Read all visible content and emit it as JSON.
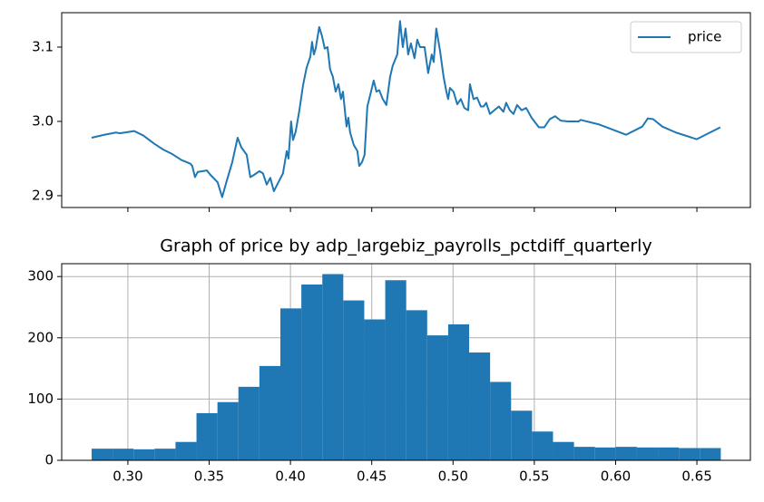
{
  "chart_data": [
    {
      "type": "line",
      "x": [
        0.2777,
        0.2855,
        0.2927,
        0.295,
        0.3039,
        0.3095,
        0.3162,
        0.3218,
        0.3273,
        0.3329,
        0.3385,
        0.3396,
        0.3413,
        0.343,
        0.3486,
        0.3508,
        0.3552,
        0.358,
        0.3608,
        0.3642,
        0.3675,
        0.3698,
        0.3731,
        0.3753,
        0.3776,
        0.3809,
        0.3831,
        0.3854,
        0.3876,
        0.3898,
        0.3921,
        0.3954,
        0.3977,
        0.3988,
        0.4004,
        0.4016,
        0.4032,
        0.4055,
        0.4077,
        0.4099,
        0.4122,
        0.4133,
        0.4144,
        0.4155,
        0.4177,
        0.4194,
        0.4211,
        0.4228,
        0.4244,
        0.4261,
        0.4278,
        0.4295,
        0.4311,
        0.4323,
        0.4345,
        0.4356,
        0.4367,
        0.439,
        0.4412,
        0.4423,
        0.444,
        0.4456,
        0.4473,
        0.449,
        0.4501,
        0.4512,
        0.4529,
        0.4546,
        0.4568,
        0.459,
        0.4613,
        0.4629,
        0.4657,
        0.4674,
        0.4691,
        0.4708,
        0.4724,
        0.4741,
        0.4763,
        0.478,
        0.4797,
        0.4825,
        0.4847,
        0.4869,
        0.4881,
        0.4897,
        0.492,
        0.4942,
        0.4959,
        0.497,
        0.4981,
        0.5003,
        0.5026,
        0.5048,
        0.507,
        0.5093,
        0.5104,
        0.5126,
        0.5148,
        0.5171,
        0.5188,
        0.5204,
        0.5227,
        0.5254,
        0.5282,
        0.531,
        0.5327,
        0.5349,
        0.5372,
        0.5394,
        0.5422,
        0.545,
        0.5483,
        0.5528,
        0.5561,
        0.5595,
        0.5628,
        0.5662,
        0.5707,
        0.5773,
        0.5785,
        0.5896,
        0.6064,
        0.6164,
        0.6198,
        0.6231,
        0.6287,
        0.6371,
        0.6499,
        0.6644
      ],
      "series": [
        {
          "name": "price",
          "color": "#1f77b4",
          "values": [
            2.978,
            2.982,
            2.985,
            2.984,
            2.987,
            2.981,
            2.97,
            2.962,
            2.956,
            2.948,
            2.943,
            2.94,
            2.925,
            2.932,
            2.934,
            2.928,
            2.918,
            2.898,
            2.92,
            2.945,
            2.978,
            2.965,
            2.955,
            2.925,
            2.928,
            2.933,
            2.93,
            2.915,
            2.924,
            2.906,
            2.916,
            2.93,
            2.96,
            2.95,
            3.0,
            2.975,
            2.986,
            3.015,
            3.048,
            3.072,
            3.087,
            3.107,
            3.09,
            3.098,
            3.127,
            3.115,
            3.098,
            3.1,
            3.07,
            3.06,
            3.04,
            3.05,
            3.03,
            3.04,
            2.993,
            3.005,
            2.985,
            2.968,
            2.96,
            2.94,
            2.945,
            2.955,
            3.02,
            3.035,
            3.045,
            3.055,
            3.04,
            3.042,
            3.03,
            3.022,
            3.06,
            3.075,
            3.09,
            3.135,
            3.1,
            3.125,
            3.09,
            3.105,
            3.085,
            3.11,
            3.1,
            3.1,
            3.065,
            3.09,
            3.08,
            3.125,
            3.095,
            3.06,
            3.04,
            3.03,
            3.045,
            3.04,
            3.023,
            3.03,
            3.018,
            3.015,
            3.05,
            3.03,
            3.032,
            3.02,
            3.02,
            3.025,
            3.01,
            3.015,
            3.02,
            3.013,
            3.025,
            3.015,
            3.01,
            3.022,
            3.015,
            3.018,
            3.005,
            2.992,
            2.992,
            3.003,
            3.007,
            3.001,
            3.0,
            3.0,
            3.002,
            2.996,
            2.982,
            2.993,
            3.004,
            3.003,
            2.993,
            2.985,
            2.976,
            2.992
          ]
        }
      ],
      "xlim": [
        0.2593,
        0.6829
      ],
      "ylim": [
        2.8841,
        3.1463
      ],
      "yticks": [
        2.9,
        {
          "value": 3.0,
          "label": "3.0"
        },
        3.1
      ],
      "legend": "upper right"
    },
    {
      "type": "histogram",
      "title": "Graph of price by adp_largebiz_payrolls_pctdiff_quarterly",
      "bins": [
        0.2777,
        0.2906,
        0.3035,
        0.3164,
        0.3293,
        0.3422,
        0.3551,
        0.368,
        0.3809,
        0.3938,
        0.4067,
        0.4196,
        0.4325,
        0.4454,
        0.4583,
        0.4712,
        0.4841,
        0.497,
        0.5099,
        0.5228,
        0.5357,
        0.5486,
        0.5615,
        0.5744,
        0.5873,
        0.6002,
        0.6131,
        0.626,
        0.6389,
        0.6518,
        0.6647
      ],
      "values": [
        19,
        19,
        18,
        19,
        30,
        77,
        95,
        120,
        154,
        248,
        287,
        304,
        261,
        230,
        294,
        245,
        204,
        222,
        176,
        128,
        81,
        47,
        30,
        22,
        21,
        22,
        21,
        21,
        20,
        20
      ],
      "color": "#1f77b4",
      "xlim": [
        0.2593,
        0.6829
      ],
      "ylim": [
        0,
        321
      ],
      "xticks": [
        {
          "value": 0.3,
          "label": "0.30"
        },
        0.35,
        {
          "value": 0.4,
          "label": "0.40"
        },
        0.45,
        {
          "value": 0.5,
          "label": "0.50"
        },
        0.55,
        {
          "value": 0.6,
          "label": "0.60"
        },
        0.65
      ],
      "yticks": [
        0,
        100,
        200,
        300
      ],
      "grid": true
    }
  ]
}
